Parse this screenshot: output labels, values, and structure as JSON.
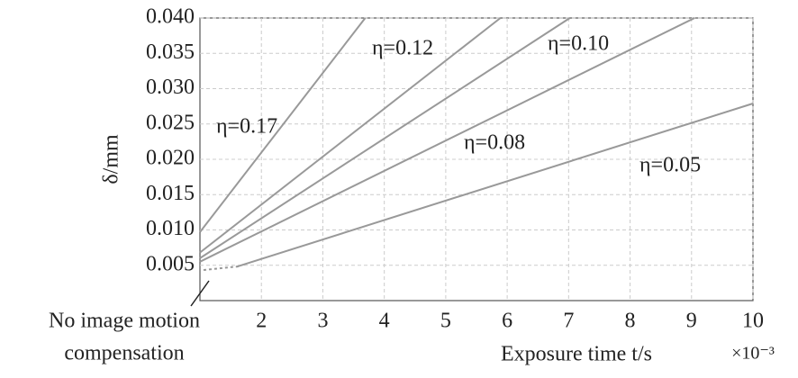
{
  "chart_data": {
    "type": "line",
    "x_label": "Exposure time t/s",
    "x_unit": "×10⁻³",
    "y_label": "δ/mm",
    "annotation": [
      "No image motion",
      "compensation"
    ],
    "xlim": [
      1,
      10
    ],
    "xticks": [
      2,
      3,
      4,
      5,
      6,
      7,
      8,
      9,
      10
    ],
    "ylim": [
      0,
      0.04
    ],
    "yticks": [
      0.005,
      {
        "value": 0.01,
        "label": "0.010"
      },
      0.015,
      {
        "value": 0.02,
        "label": "0.020"
      },
      0.025,
      {
        "value": 0.03,
        "label": "0.030"
      },
      0.035,
      {
        "value": 0.04,
        "label": "0.040"
      }
    ],
    "grid": true,
    "series": [
      {
        "name": "η=0.17",
        "color": "#999999",
        "x": [
          1,
          3.69
        ],
        "values": [
          0.0097,
          0.04
        ]
      },
      {
        "name": "η=0.12",
        "color": "#999999",
        "x": [
          1,
          5.89
        ],
        "values": [
          0.0068,
          0.04
        ]
      },
      {
        "name": "η=0.10",
        "color": "#999999",
        "x": [
          1,
          7.02
        ],
        "values": [
          0.006,
          0.04
        ]
      },
      {
        "name": "η=0.08",
        "color": "#999999",
        "x": [
          1,
          9.05
        ],
        "values": [
          0.0055,
          0.04
        ]
      },
      {
        "name": "η=0.05",
        "color": "#999999",
        "x": [
          1.6,
          10
        ],
        "values": [
          0.0048,
          0.0279
        ]
      }
    ]
  }
}
